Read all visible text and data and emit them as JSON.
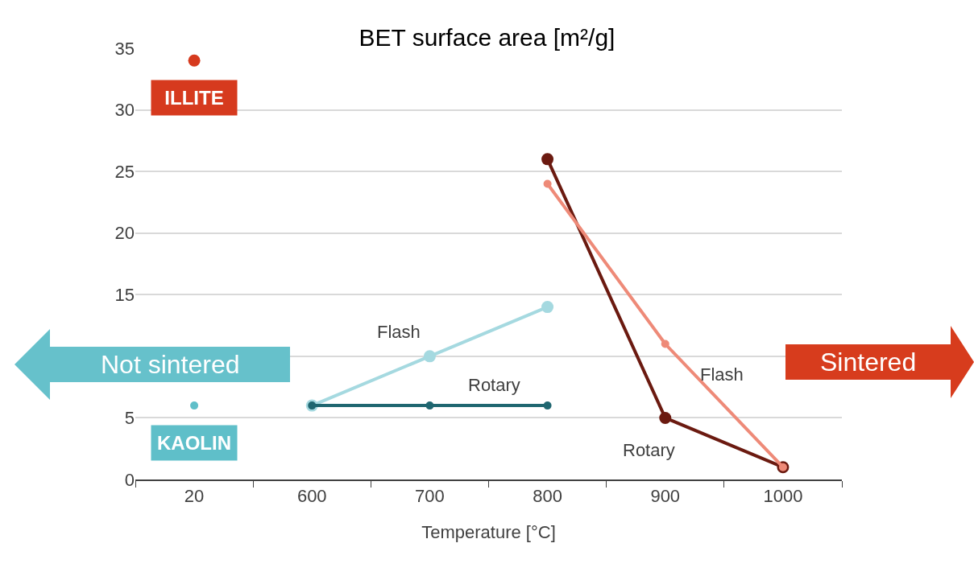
{
  "chart_data": {
    "type": "line",
    "title": "BET surface area [m²/g]",
    "xlabel": "Temperature [°C]",
    "categories": [
      "20",
      "600",
      "700",
      "800",
      "900",
      "1000"
    ],
    "series": [
      {
        "name": "ILLITE",
        "type": "scatter",
        "color": "#d63a1e",
        "values": [
          34,
          null,
          null,
          null,
          null,
          null
        ]
      },
      {
        "name": "KAOLIN",
        "type": "scatter",
        "color": "#5fbfc9",
        "values": [
          6,
          null,
          null,
          null,
          null,
          null
        ]
      },
      {
        "name": "Flash",
        "color": "#a5d9e0",
        "values": [
          null,
          6,
          10,
          14,
          null,
          null
        ]
      },
      {
        "name": "Rotary",
        "color": "#1f6670",
        "values": [
          null,
          6,
          6,
          6,
          null,
          null
        ]
      },
      {
        "name": "Rotary",
        "color": "#6b1a10",
        "values": [
          null,
          null,
          null,
          26,
          5,
          1
        ]
      },
      {
        "name": "Flash",
        "color": "#ee8a78",
        "values": [
          null,
          null,
          null,
          24,
          11,
          1
        ]
      }
    ],
    "annotations": [
      "Not sintered",
      "Sintered"
    ],
    "ylim": [
      0,
      35
    ],
    "yticks": [
      0,
      5,
      {
        "value": 10,
        "label": null
      },
      15,
      20,
      25,
      30,
      35
    ],
    "grid": "y",
    "legend": false,
    "marker": "circle",
    "line_style": "solid"
  }
}
